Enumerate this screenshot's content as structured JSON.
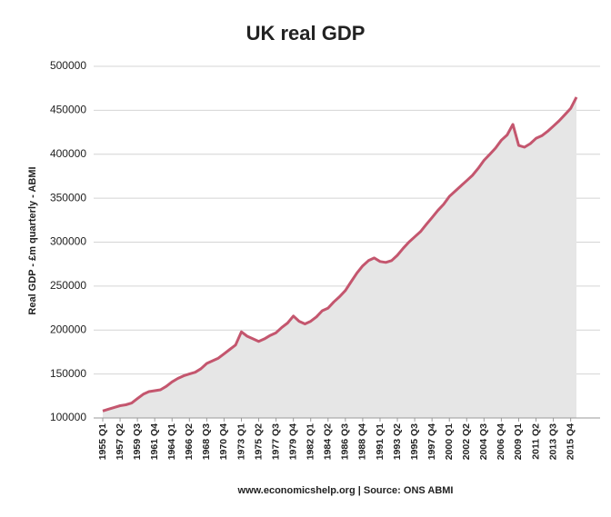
{
  "chart_data": {
    "type": "area",
    "title": "UK real GDP",
    "y_label": "Real GDP - £m quarterly - ABMI",
    "source": "www.economicshelp.org | Source: ONS ABMI",
    "color": "#c4566e",
    "area_color": "#e6e6e6",
    "grid": true,
    "ylim": [
      100000,
      500000
    ],
    "yticks": [
      100000,
      150000,
      200000,
      250000,
      300000,
      350000,
      400000,
      450000,
      500000
    ],
    "categories": [
      "1955 Q1",
      null,
      null,
      "1957 Q2",
      null,
      null,
      "1959 Q3",
      null,
      null,
      "1961 Q4",
      null,
      null,
      "1964 Q1",
      null,
      null,
      "1966 Q2",
      null,
      null,
      "1968 Q3",
      null,
      null,
      "1970 Q4",
      null,
      null,
      "1973 Q1",
      null,
      null,
      "1975 Q2",
      null,
      null,
      "1977 Q3",
      null,
      null,
      "1979 Q4",
      null,
      null,
      "1982 Q1",
      null,
      null,
      "1984 Q2",
      null,
      null,
      "1986 Q3",
      null,
      null,
      "1988 Q4",
      null,
      null,
      "1991 Q1",
      null,
      null,
      "1993 Q2",
      null,
      null,
      "1995 Q3",
      null,
      null,
      "1997 Q4",
      null,
      null,
      "2000 Q1",
      null,
      null,
      "2002 Q2",
      null,
      null,
      "2004 Q3",
      null,
      null,
      "2006 Q4",
      null,
      null,
      "2009 Q1",
      null,
      null,
      "2011 Q2",
      null,
      null,
      "2013 Q3",
      null,
      null,
      "2015 Q4",
      null
    ],
    "values": [
      108000,
      110000,
      112000,
      114000,
      115000,
      117000,
      122000,
      127000,
      130000,
      131000,
      132000,
      136000,
      141000,
      145000,
      148000,
      150000,
      152000,
      156000,
      162000,
      165000,
      168000,
      173000,
      178000,
      183000,
      198000,
      193000,
      190000,
      187000,
      190000,
      194000,
      197000,
      203000,
      208000,
      216000,
      210000,
      207000,
      210000,
      215000,
      222000,
      225000,
      232000,
      238000,
      245000,
      255000,
      265000,
      273000,
      279000,
      282000,
      278000,
      277000,
      279000,
      285000,
      293000,
      300000,
      306000,
      312000,
      320000,
      328000,
      336000,
      343000,
      352000,
      358000,
      364000,
      370000,
      376000,
      384000,
      393000,
      400000,
      407000,
      416000,
      422000,
      434000,
      410000,
      408000,
      412000,
      418000,
      421000,
      426000,
      432000,
      438000,
      445000,
      452000,
      465000
    ]
  }
}
